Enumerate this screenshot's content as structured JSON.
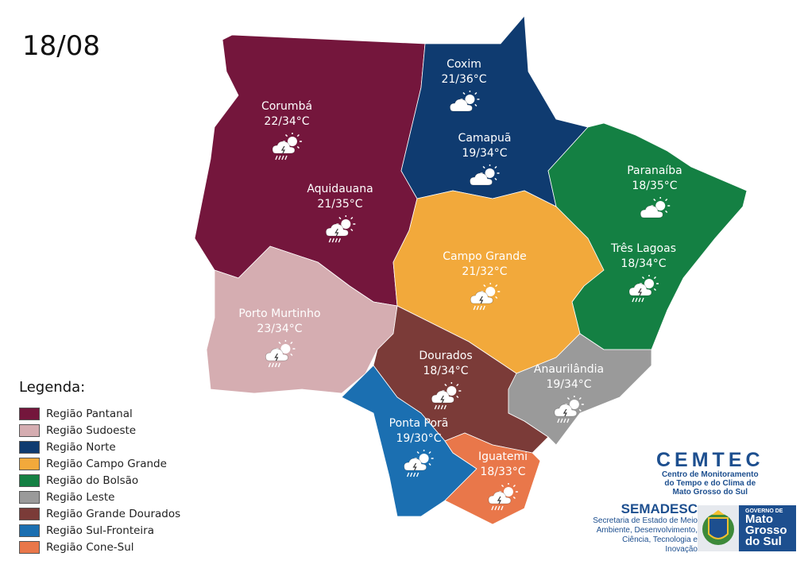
{
  "date": "18/08",
  "legend": {
    "title": "Legenda:",
    "items": [
      {
        "label": "Região Pantanal",
        "color": "#74163c"
      },
      {
        "label": "Região Sudoeste",
        "color": "#d5adb1"
      },
      {
        "label": "Região Norte",
        "color": "#0f3b70"
      },
      {
        "label": "Região Campo Grande",
        "color": "#f2a93b"
      },
      {
        "label": "Região do Bolsão",
        "color": "#148043"
      },
      {
        "label": "Região Leste",
        "color": "#9a9a9a"
      },
      {
        "label": "Região Grande Dourados",
        "color": "#7b3b38"
      },
      {
        "label": "Região Sul-Fronteira",
        "color": "#1b6fb1"
      },
      {
        "label": "Região Cone-Sul",
        "color": "#e9774a"
      }
    ]
  },
  "cities": [
    {
      "name": "Corumbá",
      "temp": "22/34°C",
      "icon": "storm-partly-cloudy"
    },
    {
      "name": "Aquidauana",
      "temp": "21/35°C",
      "icon": "storm-partly-cloudy"
    },
    {
      "name": "Coxim",
      "temp": "21/36°C",
      "icon": "partly-cloudy"
    },
    {
      "name": "Camapuã",
      "temp": "19/34°C",
      "icon": "partly-cloudy"
    },
    {
      "name": "Paranaíba",
      "temp": "18/35°C",
      "icon": "partly-cloudy"
    },
    {
      "name": "Três Lagoas",
      "temp": "18/34°C",
      "icon": "storm-partly-cloudy"
    },
    {
      "name": "Campo Grande",
      "temp": "21/32°C",
      "icon": "storm-partly-cloudy"
    },
    {
      "name": "Porto Murtinho",
      "temp": "23/34°C",
      "icon": "storm-partly-cloudy"
    },
    {
      "name": "Dourados",
      "temp": "18/34°C",
      "icon": "storm-partly-cloudy"
    },
    {
      "name": "Anaurilândia",
      "temp": "19/34°C",
      "icon": "storm-partly-cloudy"
    },
    {
      "name": "Ponta Porã",
      "temp": "19/30°C",
      "icon": "storm-partly-cloudy"
    },
    {
      "name": "Iguatemi",
      "temp": "18/33°C",
      "icon": "storm-partly-cloudy"
    }
  ],
  "logos": {
    "cemtec_name": "CEMTEC",
    "cemtec_sub": "Centro de Monitoramento do Tempo e do Clima de Mato Grosso do Sul",
    "semadesc_name": "SEMADESC",
    "semadesc_sub": "Secretaria de Estado de Meio Ambiente, Desenvolvimento, Ciência, Tecnologia e Inovação",
    "gov_top": "GOVERNO DE",
    "gov_main": "Mato Grosso do Sul"
  }
}
